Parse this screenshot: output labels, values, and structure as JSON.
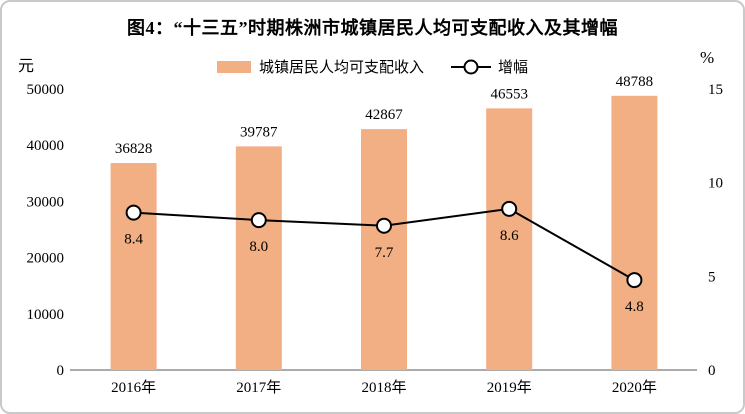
{
  "title": "图4：“十三五”时期株洲市城镇居民人均可支配收入及其增幅",
  "legend": {
    "bar_label": "城镇居民人均可支配收入",
    "line_label": "增幅"
  },
  "chart_data": {
    "type": "bar+line",
    "title": "图4：“十三五”时期株洲市城镇居民人均可支配收入及其增幅",
    "categories": [
      "2016年",
      "2017年",
      "2018年",
      "2019年",
      "2020年"
    ],
    "series": [
      {
        "name": "城镇居民人均可支配收入",
        "type": "bar",
        "axis": "left",
        "values": [
          36828,
          39787,
          42867,
          46553,
          48788
        ],
        "value_labels": [
          "36828",
          "39787",
          "42867",
          "46553",
          "48788"
        ]
      },
      {
        "name": "增幅",
        "type": "line",
        "axis": "right",
        "values": [
          8.4,
          8.0,
          7.7,
          8.6,
          4.8
        ],
        "value_labels": [
          "8.4",
          "8.0",
          "7.7",
          "8.6",
          "4.8"
        ]
      }
    ],
    "left_axis": {
      "unit": "元",
      "min": 0,
      "max": 50000,
      "ticks": [
        0,
        10000,
        20000,
        30000,
        40000,
        50000
      ],
      "tick_labels": [
        "0",
        "10000",
        "20000",
        "30000",
        "40000",
        "50000"
      ]
    },
    "right_axis": {
      "unit": "%",
      "min": 0,
      "max": 15,
      "ticks": [
        0,
        5,
        10,
        15
      ],
      "tick_labels": [
        "0",
        "5",
        "10",
        "15"
      ]
    },
    "colors": {
      "bar": "#F2AF83",
      "line": "#000000",
      "marker_fill": "#FFFFFF",
      "axis_line": "#ABABAB"
    },
    "legend_position": "top",
    "grid": false
  }
}
